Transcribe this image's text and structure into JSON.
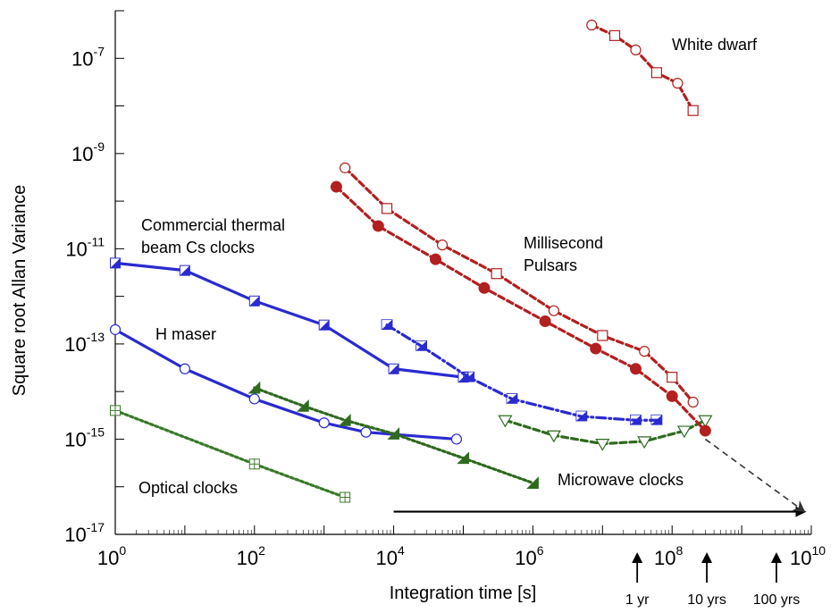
{
  "chart_data": {
    "type": "line",
    "title": "",
    "xlabel": "Integration time [s]",
    "ylabel": "Square root Allan Variance",
    "xscale": "log",
    "yscale": "log",
    "xlim": [
      1,
      10000000000
    ],
    "ylim": [
      1e-17,
      1e-06
    ],
    "grid": false,
    "x_tick_labels": [
      {
        "base": "10",
        "exp": "0",
        "value": 1
      },
      {
        "base": "10",
        "exp": "2",
        "value": 100
      },
      {
        "base": "10",
        "exp": "4",
        "value": 10000
      },
      {
        "base": "10",
        "exp": "6",
        "value": 1000000
      },
      {
        "base": "10",
        "exp": "8",
        "value": 100000000
      },
      {
        "base": "10",
        "exp": "10",
        "value": 10000000000
      }
    ],
    "y_tick_labels": [
      {
        "base": "10",
        "exp": "-17",
        "value": 1e-17
      },
      {
        "base": "10",
        "exp": "-15",
        "value": 1e-15
      },
      {
        "base": "10",
        "exp": "-13",
        "value": 1e-13
      },
      {
        "base": "10",
        "exp": "-11",
        "value": 1e-11
      },
      {
        "base": "10",
        "exp": "-9",
        "value": 1e-09
      },
      {
        "base": "10",
        "exp": "-7",
        "value": 1e-07
      }
    ],
    "series": [
      {
        "key": "cs-beam",
        "color": "#2a2ad0",
        "dash": "solid",
        "marker": "half-square",
        "x": [
          1,
          10,
          100,
          1000,
          10000,
          100000
        ],
        "y": [
          5e-12,
          3.5e-12,
          8e-13,
          2.5e-13,
          3e-14,
          2e-14
        ]
      },
      {
        "key": "h-maser",
        "color": "#2a2ad0",
        "dash": "solid",
        "marker": "open-circle",
        "x": [
          1,
          10,
          100,
          1000,
          4000,
          80000
        ],
        "y": [
          2e-13,
          3e-14,
          7e-15,
          2.2e-15,
          1.4e-15,
          1e-15
        ]
      },
      {
        "key": "blue-dashdot",
        "color": "#2a2ad0",
        "dash": "dashdot",
        "marker": "half-triangle",
        "x": [
          8000,
          25000,
          120000,
          500000,
          5000000,
          30000000,
          60000000
        ],
        "y": [
          2.5e-13,
          9e-14,
          2e-14,
          7e-15,
          3e-15,
          2.5e-15,
          2.5e-15
        ]
      },
      {
        "key": "optical",
        "color": "#3a7a2a",
        "dash": "dotted",
        "marker": "boxed-plus",
        "x": [
          1,
          100,
          2000
        ],
        "y": [
          4e-15,
          3e-16,
          6e-17
        ]
      },
      {
        "key": "microwave-1",
        "color": "#2f6a1f",
        "dash": "dotted",
        "marker": "filled-triangle",
        "x": [
          100,
          500,
          2000,
          10000,
          100000,
          1000000
        ],
        "y": [
          1.2e-14,
          5e-15,
          2.5e-15,
          1.3e-15,
          4e-16,
          1.2e-16
        ]
      },
      {
        "key": "microwave-2",
        "color": "#2f6a1f",
        "dash": "dashed",
        "marker": "open-down-triangle",
        "x": [
          400000,
          2000000,
          10000000,
          40000000,
          150000000,
          300000000
        ],
        "y": [
          2.5e-15,
          1.2e-15,
          8e-16,
          9e-16,
          1.5e-15,
          2.5e-15
        ]
      },
      {
        "key": "pulsar-open",
        "color": "#b22020",
        "dash": "dashed",
        "marker": "open-circle-square",
        "x": [
          2000,
          8000,
          50000,
          300000,
          2000000,
          10000000,
          40000000,
          100000000,
          200000000
        ],
        "y": [
          5e-10,
          7e-11,
          1.2e-11,
          3e-12,
          5e-13,
          1.5e-13,
          7e-14,
          2e-14,
          6e-15
        ]
      },
      {
        "key": "pulsar-filled",
        "color": "#b22020",
        "dash": "dashed",
        "marker": "filled-circle",
        "x": [
          1500,
          6000,
          40000,
          200000,
          1500000,
          8000000,
          30000000,
          100000000,
          300000000
        ],
        "y": [
          2e-10,
          3e-11,
          6e-12,
          1.5e-12,
          3e-13,
          8e-14,
          3e-14,
          8e-15,
          1.5e-15
        ]
      },
      {
        "key": "white-dwarf",
        "color": "#b22020",
        "dash": "dashed",
        "marker": "open-circle-square",
        "x": [
          7000000,
          15000000,
          30000000,
          60000000,
          120000000,
          200000000
        ],
        "y": [
          5e-07,
          3e-07,
          1.5e-07,
          5e-08,
          3e-08,
          8e-09
        ]
      }
    ],
    "annotations": [
      {
        "lines": [
          "White dwarf"
        ]
      },
      {
        "lines": [
          "Commercial thermal",
          "beam Cs clocks"
        ]
      },
      {
        "lines": [
          "Millisecond",
          "Pulsars"
        ]
      },
      {
        "lines": [
          "H maser"
        ]
      },
      {
        "lines": [
          "Optical clocks"
        ]
      },
      {
        "lines": [
          "Microwave clocks"
        ]
      }
    ],
    "time_markers": [
      {
        "label": "1 yr",
        "value": 31536000
      },
      {
        "label": "10 yrs",
        "value": 315360000
      },
      {
        "label": "100 yrs",
        "value": 3153600000
      }
    ],
    "extrapolation": {
      "from": {
        "x": 300000000,
        "y": 1e-15
      },
      "to": {
        "x": 8000000000,
        "y": 3e-17
      }
    },
    "horizon_arrow": {
      "from": {
        "x": 10000,
        "y": 3e-17
      },
      "to": {
        "x": 8000000000,
        "y": 3e-17
      }
    }
  }
}
